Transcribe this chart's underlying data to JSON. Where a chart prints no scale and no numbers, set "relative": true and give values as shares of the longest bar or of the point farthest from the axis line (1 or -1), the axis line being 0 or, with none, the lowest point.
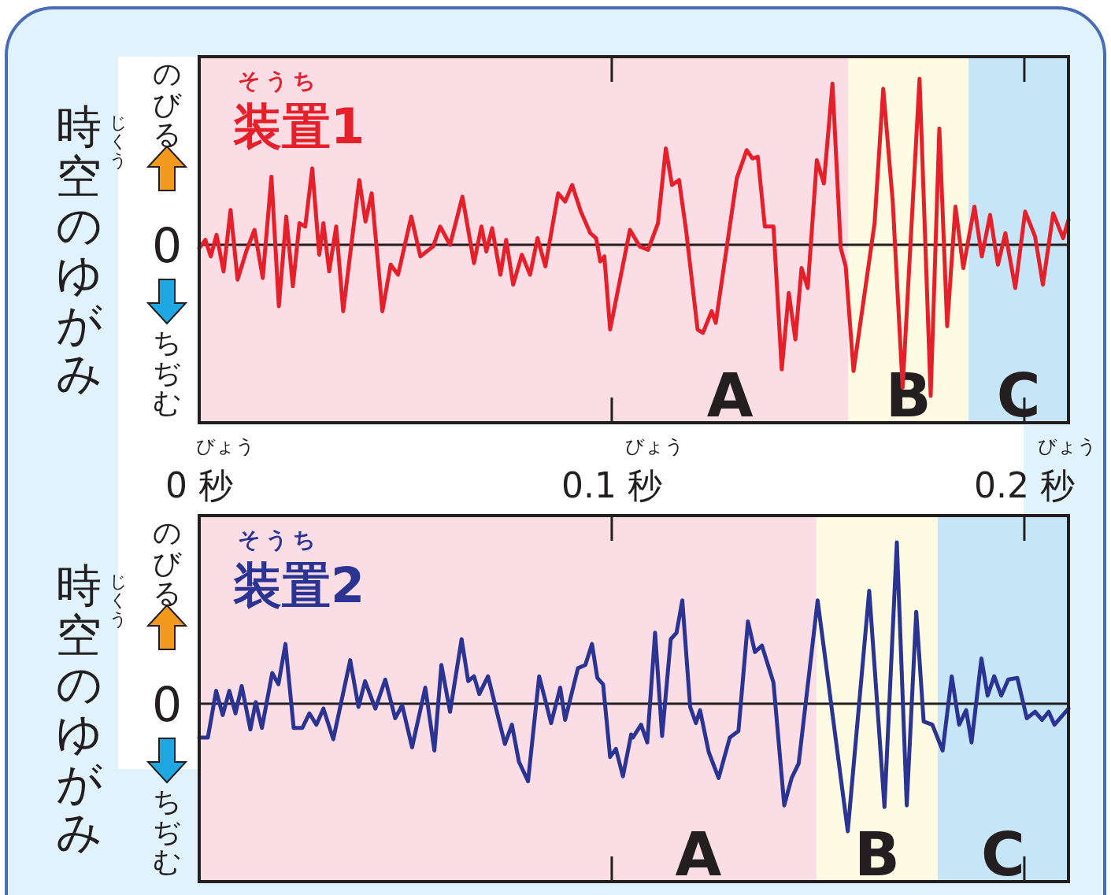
{
  "chart_data": [
    {
      "type": "line",
      "title": "装置1",
      "ylabel": "時空のゆがみ",
      "relative": true,
      "annotations": [
        "そうち",
        "じくう",
        "のびる",
        "ちぢむ",
        "0",
        "びょう",
        "びょう",
        "びょう"
      ],
      "xlim": [
        0,
        0.2107
      ],
      "xticks": [
        {
          "value": 0,
          "label": "0 秒"
        },
        {
          "value": 0.1,
          "label": "0.1 秒"
        },
        {
          "value": 0.2,
          "label": "0.2 秒"
        }
      ],
      "bands": [
        {
          "axis": "x",
          "from": 0,
          "to": 0.1573,
          "label": "A",
          "color": "#fbdde6"
        },
        {
          "axis": "x",
          "from": 0.1573,
          "to": 0.1865,
          "label": "B",
          "color": "#fdfbe1"
        },
        {
          "axis": "x",
          "from": 0.1865,
          "to": 0.2107,
          "label": "C",
          "color": "#c6e6f7"
        }
      ],
      "series": [
        {
          "color": "#e5202a",
          "x": [
            0.0,
            0.0015,
            0.0028,
            0.0042,
            0.0059,
            0.0076,
            0.0093,
            0.0114,
            0.0134,
            0.0154,
            0.0175,
            0.0193,
            0.0211,
            0.0227,
            0.0243,
            0.0257,
            0.0274,
            0.0291,
            0.0301,
            0.0315,
            0.0332,
            0.0349,
            0.0388,
            0.0403,
            0.0418,
            0.0444,
            0.0464,
            0.0482,
            0.0514,
            0.0536,
            0.0567,
            0.0584,
            0.0608,
            0.0638,
            0.0666,
            0.0684,
            0.0696,
            0.071,
            0.073,
            0.0744,
            0.0761,
            0.0782,
            0.0802,
            0.082,
            0.0839,
            0.087,
            0.0887,
            0.0904,
            0.0925,
            0.0948,
            0.0962,
            0.0972,
            0.0982,
            0.0996,
            0.1044,
            0.1051,
            0.1068,
            0.1088,
            0.1112,
            0.1131,
            0.1146,
            0.1163,
            0.118,
            0.1208,
            0.1221,
            0.1242,
            0.1252,
            0.1303,
            0.1327,
            0.1341,
            0.1354,
            0.1371,
            0.1392,
            0.1412,
            0.1429,
            0.1445,
            0.146,
            0.1475,
            0.1497,
            0.1514,
            0.1535,
            0.1555,
            0.1567,
            0.1586,
            0.1637,
            0.1658,
            0.1681,
            0.1705,
            0.1746,
            0.1773,
            0.1794,
            0.1813,
            0.1833,
            0.1852,
            0.1879,
            0.1897,
            0.1917,
            0.1936,
            0.1954,
            0.1978,
            0.2002,
            0.2026,
            0.2045,
            0.207,
            0.2094,
            0.2107
          ],
          "values": [
            -0.02,
            0.03,
            -0.07,
            0.06,
            -0.16,
            0.21,
            -0.21,
            -0.04,
            0.09,
            -0.2,
            0.41,
            -0.37,
            0.17,
            -0.25,
            0.13,
            0.11,
            0.46,
            -0.06,
            0.13,
            -0.16,
            0.11,
            -0.4,
            0.39,
            0.14,
            0.31,
            -0.4,
            -0.12,
            -0.18,
            0.17,
            -0.07,
            -0.01,
            0.11,
            0.0,
            0.29,
            -0.11,
            0.11,
            -0.04,
            0.1,
            -0.18,
            0.03,
            -0.24,
            -0.06,
            -0.18,
            0.04,
            -0.13,
            0.31,
            0.26,
            0.36,
            0.2,
            0.07,
            0.04,
            -0.1,
            -0.07,
            -0.51,
            0.09,
            0.06,
            -0.01,
            -0.03,
            0.13,
            0.58,
            0.36,
            0.39,
            0.09,
            -0.51,
            -0.53,
            -0.4,
            -0.47,
            0.4,
            0.57,
            0.52,
            0.53,
            0.11,
            0.11,
            -0.75,
            -0.29,
            -0.57,
            -0.14,
            -0.26,
            0.51,
            0.37,
            0.97,
            -0.02,
            -0.13,
            -0.76,
            0.13,
            0.94,
            0.26,
            -0.86,
            1.0,
            -0.91,
            0.7,
            -0.49,
            0.23,
            -0.14,
            0.23,
            -0.07,
            0.18,
            -0.12,
            0.07,
            -0.26,
            0.2,
            0.05,
            -0.24,
            0.19,
            0.04,
            0.15
          ]
        }
      ]
    },
    {
      "type": "line",
      "title": "装置2",
      "ylabel": "時空のゆがみ",
      "relative": true,
      "tick_labels": false,
      "annotations": [
        "そうち",
        "じくう",
        "のびる",
        "ちぢむ",
        "0"
      ],
      "xlim": [
        0,
        0.2107
      ],
      "xticks": [
        0,
        0.1,
        0.2
      ],
      "bands": [
        {
          "axis": "x",
          "from": 0,
          "to": 0.1496,
          "label": "A",
          "color": "#fbdde6"
        },
        {
          "axis": "x",
          "from": 0.1496,
          "to": 0.179,
          "label": "B",
          "color": "#fdfbe1"
        },
        {
          "axis": "x",
          "from": 0.179,
          "to": 0.2107,
          "label": "C",
          "color": "#c6e6f7"
        }
      ],
      "series": [
        {
          "color": "#2b3492",
          "x": [
            0.0,
            0.0021,
            0.0041,
            0.0057,
            0.0073,
            0.0088,
            0.0103,
            0.0124,
            0.0137,
            0.0152,
            0.0177,
            0.0192,
            0.0209,
            0.0229,
            0.025,
            0.0267,
            0.0284,
            0.0301,
            0.0325,
            0.0366,
            0.0386,
            0.0402,
            0.0427,
            0.0451,
            0.0475,
            0.0492,
            0.0516,
            0.0548,
            0.057,
            0.0587,
            0.0608,
            0.0636,
            0.0652,
            0.0666,
            0.0679,
            0.07,
            0.0741,
            0.0758,
            0.0775,
            0.0797,
            0.0824,
            0.0853,
            0.0875,
            0.0887,
            0.0918,
            0.0936,
            0.0952,
            0.0965,
            0.0979,
            0.0996,
            0.101,
            0.1027,
            0.1047,
            0.1051,
            0.1071,
            0.1086,
            0.1105,
            0.1122,
            0.1143,
            0.1157,
            0.1171,
            0.119,
            0.1204,
            0.1214,
            0.1235,
            0.1259,
            0.1286,
            0.1307,
            0.133,
            0.1347,
            0.1364,
            0.1392,
            0.1418,
            0.1436,
            0.1453,
            0.1499,
            0.1572,
            0.1624,
            0.1661,
            0.1691,
            0.1715,
            0.1738,
            0.1756,
            0.1777,
            0.1802,
            0.1824,
            0.1842,
            0.1859,
            0.1872,
            0.1896,
            0.1911,
            0.1927,
            0.1944,
            0.1961,
            0.1983,
            0.2006,
            0.2026,
            0.2043,
            0.2059,
            0.2073,
            0.2107
          ],
          "values": [
            -0.21,
            -0.21,
            0.08,
            -0.07,
            0.08,
            -0.06,
            0.11,
            -0.16,
            0.01,
            -0.15,
            0.19,
            0.12,
            0.37,
            -0.15,
            -0.15,
            -0.06,
            -0.13,
            -0.03,
            -0.22,
            0.27,
            -0.02,
            0.14,
            -0.03,
            0.15,
            -0.09,
            -0.01,
            -0.27,
            0.1,
            -0.29,
            0.24,
            -0.05,
            0.4,
            0.14,
            0.17,
            0.06,
            0.17,
            -0.25,
            -0.13,
            -0.36,
            -0.48,
            0.17,
            -0.12,
            0.1,
            -0.1,
            0.22,
            0.24,
            0.37,
            0.16,
            0.12,
            -0.33,
            -0.28,
            -0.45,
            -0.19,
            -0.21,
            -0.13,
            -0.24,
            0.44,
            -0.2,
            0.4,
            0.44,
            0.64,
            -0.02,
            -0.12,
            -0.04,
            -0.3,
            -0.46,
            -0.21,
            -0.17,
            0.51,
            0.32,
            0.36,
            0.13,
            -0.63,
            -0.46,
            -0.37,
            0.64,
            -0.79,
            0.7,
            -0.64,
            1.0,
            -0.63,
            0.57,
            -0.11,
            -0.13,
            -0.29,
            0.17,
            -0.13,
            -0.04,
            -0.24,
            0.28,
            0.05,
            0.17,
            0.05,
            0.15,
            0.16,
            -0.09,
            -0.05,
            -0.1,
            -0.05,
            -0.13,
            -0.03
          ]
        }
      ]
    }
  ]
}
